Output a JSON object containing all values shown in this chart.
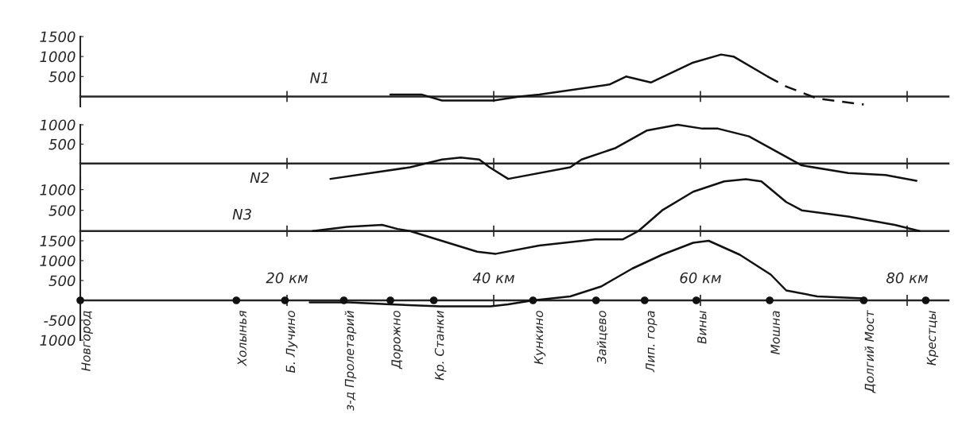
{
  "chart_data": [
    {
      "type": "line",
      "xlim": [
        0,
        84
      ],
      "ylim": [
        -250,
        1500
      ],
      "yticks": [
        500,
        1000,
        1500
      ],
      "xticks": [
        {
          "value": 20,
          "label": null
        },
        {
          "value": 40,
          "label": null
        },
        {
          "value": 60,
          "label": null
        },
        {
          "value": 80,
          "label": null
        }
      ],
      "tick_labels": "y",
      "series": [
        {
          "name": "N1",
          "color": "#111111",
          "line_style": "solid",
          "x": [
            30,
            33,
            35,
            37,
            40,
            42.5,
            44.4,
            51.2,
            52.8,
            55.2,
            59.3,
            62,
            63.2,
            66.5
          ],
          "values": [
            50,
            50,
            -100,
            -100,
            -100,
            0,
            50,
            300,
            500,
            350,
            850,
            1050,
            1000,
            500
          ]
        },
        {
          "color": "#111111",
          "line_style": "dashed",
          "x": [
            66.5,
            68.3,
            71.3,
            75.8
          ],
          "values": [
            500,
            250,
            -50,
            -200
          ]
        }
      ]
    },
    {
      "type": "line",
      "xlim": [
        0,
        84
      ],
      "ylim": [
        -500,
        1000
      ],
      "yticks": [
        500,
        1000
      ],
      "xticks": [
        {
          "value": 20,
          "label": null
        },
        {
          "value": 40,
          "label": null
        },
        {
          "value": 60,
          "label": null
        },
        {
          "value": 80,
          "label": null
        }
      ],
      "tick_labels": "y",
      "series": [
        {
          "name": "N2",
          "color": "#111111",
          "line_style": "solid",
          "x": [
            24.2,
            31.9,
            35,
            36.8,
            38.6,
            39.6,
            41.4,
            47.4,
            48.5,
            51.8,
            54.8,
            57.8,
            60.2,
            61.7,
            64.7,
            69.8,
            74.3,
            77.9,
            80.9
          ],
          "values": [
            -400,
            -100,
            100,
            150,
            100,
            -100,
            -400,
            -100,
            100,
            400,
            850,
            1000,
            900,
            900,
            700,
            -50,
            -250,
            -300,
            -450
          ]
        }
      ]
    },
    {
      "type": "line",
      "xlim": [
        0,
        84
      ],
      "ylim": [
        -600,
        1300
      ],
      "yticks": [
        500,
        1000
      ],
      "xticks": [
        {
          "value": 20,
          "label": null
        },
        {
          "value": 40,
          "label": null
        },
        {
          "value": 60,
          "label": null
        },
        {
          "value": 80,
          "label": null
        }
      ],
      "tick_labels": "y",
      "series": [
        {
          "name": "N3",
          "color": "#111111",
          "line_style": "solid",
          "x": [
            22.5,
            25.8,
            29.2,
            30.7,
            31.9,
            38.4,
            40.2,
            44.4,
            49.8,
            52.5,
            54,
            56.3,
            59.3,
            62.3,
            64.4,
            65.9,
            68.3,
            69.8,
            74.3,
            78.8,
            81.2
          ],
          "values": [
            0,
            100,
            150,
            50,
            0,
            -500,
            -550,
            -350,
            -200,
            -200,
            0,
            500,
            950,
            1200,
            1250,
            1200,
            700,
            500,
            350,
            150,
            0
          ]
        }
      ]
    },
    {
      "type": "line",
      "xlim": [
        0,
        84
      ],
      "ylim": [
        -1000,
        1500
      ],
      "yticks": [
        1500,
        1000,
        500,
        -500,
        {
          "value": -1000,
          "label": "1000"
        }
      ],
      "xticks": [
        {
          "value": 20,
          "label": "20 км"
        },
        {
          "value": 40,
          "label": "40 км"
        },
        {
          "value": 60,
          "label": "60 км"
        },
        {
          "value": 80,
          "label": "80 км"
        }
      ],
      "series": [
        {
          "color": "#111111",
          "line_style": "solid",
          "x": [
            22.2,
            26,
            30,
            34.8,
            39.7,
            41.4,
            43.8,
            47.4,
            50.4,
            53.4,
            56.3,
            59.3,
            60.8,
            63.8,
            66.8,
            68.3,
            71.3,
            75.8
          ],
          "values": [
            -50,
            -50,
            -100,
            -150,
            -150,
            -100,
            0,
            100,
            350,
            800,
            1150,
            1450,
            1500,
            1150,
            650,
            250,
            100,
            50
          ]
        },
        {
          "type": "scatter",
          "color": "#111111",
          "marker": "circle",
          "x": [
            0,
            15.1,
            19.8,
            25.5,
            30,
            34.2,
            43.8,
            49.9,
            54.6,
            59.6,
            66.7,
            75.8,
            81.8
          ],
          "values": [
            0,
            0,
            0,
            0,
            0,
            0,
            0,
            0,
            0,
            0,
            0,
            0,
            0
          ],
          "value_labels": [
            "Новгород",
            "Холынья",
            "Б. Лучино",
            "з-д Пролетарий",
            "Дорожно",
            "Кр. Станки",
            "Кункино",
            "Зайцево",
            "Лип. гора",
            "Вины",
            "Мошна",
            "Долгий Мост",
            "Крестцы"
          ]
        }
      ]
    }
  ]
}
